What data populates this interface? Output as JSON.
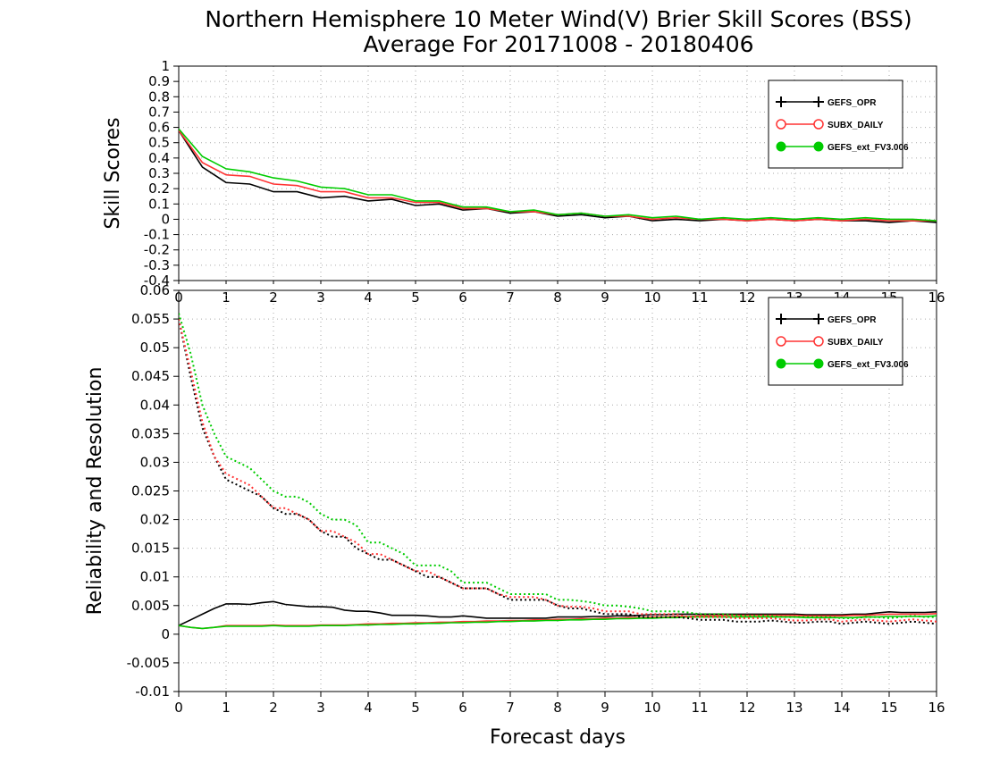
{
  "title_line1": "Northern Hemisphere 10 Meter Wind(V) Brier Skill Scores (BSS)",
  "title_line2": "Average For 20171008 - 20180406",
  "chart_data": [
    {
      "type": "line",
      "ylabel": "Skill Scores",
      "xlabel": "",
      "xlim": [
        0,
        16
      ],
      "ylim": [
        -0.4,
        1
      ],
      "xticks": [
        "0",
        "1",
        "2",
        "3",
        "4",
        "5",
        "6",
        "7",
        "8",
        "9",
        "10",
        "11",
        "12",
        "13",
        "14",
        "15",
        "16"
      ],
      "yticks": [
        "-0.4",
        "-0.3",
        "-0.2",
        "-0.1",
        "0",
        "0.1",
        "0.2",
        "0.3",
        "0.4",
        "0.5",
        "0.6",
        "0.7",
        "0.8",
        "0.9",
        "1"
      ],
      "grid": true,
      "legend_position": "top-right",
      "x": [
        0,
        0.5,
        1,
        1.5,
        2,
        2.5,
        3,
        3.5,
        4,
        4.5,
        5,
        5.5,
        6,
        6.5,
        7,
        7.5,
        8,
        8.5,
        9,
        9.5,
        10,
        10.5,
        11,
        11.5,
        12,
        12.5,
        13,
        13.5,
        14,
        14.5,
        15,
        15.5,
        16
      ],
      "series": [
        {
          "name": "GEFS_OPR",
          "color": "#000000",
          "marker": "plus",
          "values": [
            0.58,
            0.34,
            0.24,
            0.23,
            0.18,
            0.18,
            0.14,
            0.15,
            0.12,
            0.13,
            0.09,
            0.1,
            0.06,
            0.07,
            0.04,
            0.05,
            0.02,
            0.03,
            0.01,
            0.02,
            -0.01,
            0.0,
            -0.01,
            0.0,
            -0.01,
            0.0,
            -0.01,
            0.0,
            -0.01,
            -0.01,
            -0.02,
            -0.01,
            -0.02
          ]
        },
        {
          "name": "SUBX_DAILY",
          "color": "#ff3333",
          "marker": "open-circle",
          "values": [
            0.58,
            0.37,
            0.29,
            0.28,
            0.23,
            0.22,
            0.18,
            0.18,
            0.14,
            0.14,
            0.11,
            0.11,
            0.07,
            0.07,
            0.05,
            0.05,
            0.03,
            0.04,
            0.02,
            0.02,
            0.0,
            0.01,
            0.0,
            0.0,
            -0.01,
            0.0,
            -0.01,
            0.0,
            -0.01,
            0.0,
            -0.01,
            -0.01,
            -0.01
          ]
        },
        {
          "name": "GEFS_ext_FV3.006",
          "color": "#00cc00",
          "marker": "filled-circle",
          "values": [
            0.59,
            0.41,
            0.33,
            0.31,
            0.27,
            0.25,
            0.21,
            0.2,
            0.16,
            0.16,
            0.12,
            0.12,
            0.08,
            0.08,
            0.05,
            0.06,
            0.03,
            0.04,
            0.02,
            0.03,
            0.01,
            0.02,
            0.0,
            0.01,
            0.0,
            0.01,
            0.0,
            0.01,
            0.0,
            0.01,
            0.0,
            0.0,
            -0.01
          ]
        }
      ]
    },
    {
      "type": "line",
      "ylabel": "Reliability and Resolution",
      "xlabel": "Forecast days",
      "xlim": [
        0,
        16
      ],
      "ylim": [
        -0.01,
        0.06
      ],
      "xticks": [
        "0",
        "1",
        "2",
        "3",
        "4",
        "5",
        "6",
        "7",
        "8",
        "9",
        "10",
        "11",
        "12",
        "13",
        "14",
        "15",
        "16"
      ],
      "yticks": [
        "-0.01",
        "-0.005",
        "0",
        "0.005",
        "0.01",
        "0.015",
        "0.02",
        "0.025",
        "0.03",
        "0.035",
        "0.04",
        "0.045",
        "0.05",
        "0.055",
        "0.06"
      ],
      "grid": true,
      "legend_position": "top-right",
      "legend": [
        {
          "name": "GEFS_OPR",
          "color": "#000000",
          "marker": "plus"
        },
        {
          "name": "SUBX_DAILY",
          "color": "#ff3333",
          "marker": "open-circle"
        },
        {
          "name": "GEFS_ext_FV3.006",
          "color": "#00cc00",
          "marker": "filled-circle"
        }
      ],
      "x": [
        0,
        0.25,
        0.5,
        0.75,
        1,
        1.25,
        1.5,
        1.75,
        2,
        2.25,
        2.5,
        2.75,
        3,
        3.25,
        3.5,
        3.75,
        4,
        4.25,
        4.5,
        4.75,
        5,
        5.25,
        5.5,
        5.75,
        6,
        6.25,
        6.5,
        6.75,
        7,
        7.25,
        7.5,
        7.75,
        8,
        8.25,
        8.5,
        8.75,
        9,
        9.25,
        9.5,
        9.75,
        10,
        10.25,
        10.5,
        10.75,
        11,
        11.25,
        11.5,
        11.75,
        12,
        12.25,
        12.5,
        12.75,
        13,
        13.25,
        13.5,
        13.75,
        14,
        14.25,
        14.5,
        14.75,
        15,
        15.25,
        15.5,
        15.75,
        16
      ],
      "series": [
        {
          "name": "GEFS_OPR reliability",
          "color": "#000000",
          "style": "solid",
          "values": [
            0.0015,
            0.0025,
            0.0035,
            0.0045,
            0.0053,
            0.0053,
            0.0052,
            0.0055,
            0.0057,
            0.0052,
            0.005,
            0.0048,
            0.0048,
            0.0047,
            0.0042,
            0.004,
            0.004,
            0.0037,
            0.0033,
            0.0033,
            0.0033,
            0.0032,
            0.003,
            0.003,
            0.0032,
            0.003,
            0.0028,
            0.0028,
            0.0028,
            0.0028,
            0.0028,
            0.0028,
            0.003,
            0.003,
            0.003,
            0.0031,
            0.0031,
            0.0032,
            0.0032,
            0.0033,
            0.0034,
            0.0034,
            0.0035,
            0.0035,
            0.0035,
            0.0035,
            0.0035,
            0.0035,
            0.0035,
            0.0035,
            0.0035,
            0.0035,
            0.0035,
            0.0034,
            0.0034,
            0.0034,
            0.0034,
            0.0035,
            0.0035,
            0.0037,
            0.0039,
            0.0038,
            0.0038,
            0.0038,
            0.0039
          ]
        },
        {
          "name": "SUBX_DAILY reliability",
          "color": "#ff3333",
          "style": "solid",
          "values": [
            0.0015,
            0.0012,
            0.001,
            0.0012,
            0.0015,
            0.0015,
            0.0015,
            0.0015,
            0.0016,
            0.0015,
            0.0015,
            0.0015,
            0.0016,
            0.0016,
            0.0016,
            0.0017,
            0.0018,
            0.0018,
            0.0019,
            0.0019,
            0.002,
            0.002,
            0.0021,
            0.0021,
            0.0022,
            0.0022,
            0.0023,
            0.0023,
            0.0024,
            0.0024,
            0.0025,
            0.0025,
            0.0026,
            0.0026,
            0.0027,
            0.0027,
            0.0028,
            0.0028,
            0.0029,
            0.0029,
            0.003,
            0.003,
            0.0031,
            0.0031,
            0.0032,
            0.0032,
            0.0033,
            0.0033,
            0.0033,
            0.0033,
            0.0033,
            0.0033,
            0.0033,
            0.0032,
            0.0032,
            0.0032,
            0.0032,
            0.0033,
            0.0033,
            0.0034,
            0.0035,
            0.0035,
            0.0035,
            0.0035,
            0.0036
          ]
        },
        {
          "name": "GEFS_ext_FV3.006 reliability",
          "color": "#00cc00",
          "style": "solid",
          "values": [
            0.0015,
            0.0012,
            0.001,
            0.0012,
            0.0014,
            0.0014,
            0.0014,
            0.0014,
            0.0015,
            0.0014,
            0.0014,
            0.0014,
            0.0015,
            0.0015,
            0.0015,
            0.0016,
            0.0016,
            0.0017,
            0.0017,
            0.0018,
            0.0018,
            0.0019,
            0.0019,
            0.002,
            0.002,
            0.0021,
            0.0021,
            0.0022,
            0.0022,
            0.0023,
            0.0023,
            0.0024,
            0.0024,
            0.0025,
            0.0025,
            0.0026,
            0.0026,
            0.0027,
            0.0027,
            0.0028,
            0.0028,
            0.0029,
            0.0029,
            0.003,
            0.003,
            0.003,
            0.003,
            0.003,
            0.003,
            0.003,
            0.003,
            0.003,
            0.003,
            0.0029,
            0.0029,
            0.0029,
            0.0029,
            0.0029,
            0.003,
            0.003,
            0.0031,
            0.0031,
            0.0031,
            0.0031,
            0.0032
          ]
        },
        {
          "name": "GEFS_OPR resolution",
          "color": "#000000",
          "style": "dotted",
          "values": [
            0.055,
            0.045,
            0.036,
            0.031,
            0.027,
            0.026,
            0.025,
            0.024,
            0.022,
            0.021,
            0.021,
            0.02,
            0.018,
            0.017,
            0.017,
            0.015,
            0.014,
            0.013,
            0.013,
            0.012,
            0.011,
            0.01,
            0.01,
            0.009,
            0.008,
            0.008,
            0.008,
            0.007,
            0.006,
            0.006,
            0.006,
            0.006,
            0.005,
            0.0045,
            0.0045,
            0.004,
            0.0035,
            0.0035,
            0.0035,
            0.003,
            0.003,
            0.003,
            0.003,
            0.0028,
            0.0025,
            0.0025,
            0.0025,
            0.0022,
            0.0022,
            0.0022,
            0.0024,
            0.0022,
            0.002,
            0.002,
            0.0022,
            0.0022,
            0.0018,
            0.002,
            0.0022,
            0.002,
            0.0018,
            0.002,
            0.0022,
            0.002,
            0.0018
          ]
        },
        {
          "name": "SUBX_DAILY resolution",
          "color": "#ff3333",
          "style": "dotted",
          "values": [
            0.055,
            0.046,
            0.037,
            0.031,
            0.028,
            0.027,
            0.026,
            0.024,
            0.022,
            0.022,
            0.021,
            0.02,
            0.018,
            0.018,
            0.017,
            0.016,
            0.014,
            0.014,
            0.013,
            0.012,
            0.011,
            0.011,
            0.01,
            0.009,
            0.008,
            0.008,
            0.008,
            0.007,
            0.0065,
            0.0065,
            0.0065,
            0.006,
            0.005,
            0.0048,
            0.0048,
            0.0045,
            0.004,
            0.004,
            0.004,
            0.0035,
            0.0035,
            0.0035,
            0.0035,
            0.003,
            0.003,
            0.003,
            0.003,
            0.0028,
            0.0028,
            0.0028,
            0.0028,
            0.0026,
            0.0024,
            0.0024,
            0.0026,
            0.0026,
            0.0022,
            0.0024,
            0.0026,
            0.0024,
            0.0022,
            0.0024,
            0.0026,
            0.0024,
            0.0022
          ]
        },
        {
          "name": "GEFS_ext_FV3.006 resolution",
          "color": "#00cc00",
          "style": "dotted",
          "values": [
            0.056,
            0.049,
            0.04,
            0.035,
            0.031,
            0.03,
            0.029,
            0.027,
            0.025,
            0.024,
            0.024,
            0.023,
            0.021,
            0.02,
            0.02,
            0.019,
            0.016,
            0.016,
            0.015,
            0.014,
            0.012,
            0.012,
            0.012,
            0.011,
            0.009,
            0.009,
            0.009,
            0.008,
            0.007,
            0.007,
            0.007,
            0.007,
            0.006,
            0.006,
            0.0058,
            0.0055,
            0.005,
            0.005,
            0.0048,
            0.0045,
            0.004,
            0.004,
            0.004,
            0.0038,
            0.0035,
            0.0035,
            0.0035,
            0.0033,
            0.0032,
            0.0032,
            0.0032,
            0.003,
            0.003,
            0.003,
            0.003,
            0.003,
            0.0028,
            0.0028,
            0.003,
            0.003,
            0.0028,
            0.003,
            0.0032,
            0.003,
            0.003
          ]
        }
      ]
    }
  ]
}
